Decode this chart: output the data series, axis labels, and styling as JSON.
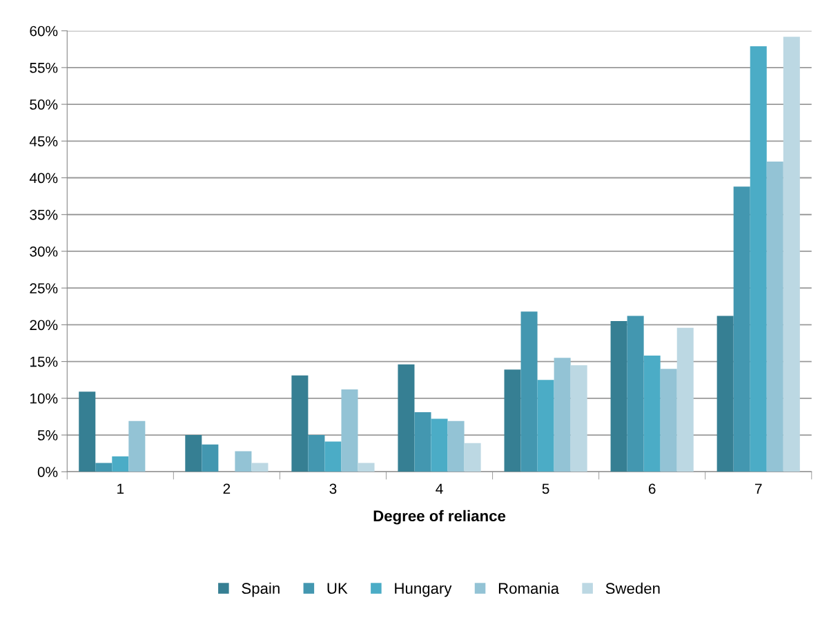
{
  "chart_data": {
    "type": "bar",
    "xlabel": "Degree of reliance",
    "categories": [
      "1",
      "2",
      "3",
      "4",
      "5",
      "6",
      "7"
    ],
    "series": [
      {
        "name": "Spain",
        "color": "#367f93",
        "values": [
          10.9,
          5.0,
          13.1,
          14.6,
          13.9,
          20.5,
          21.2
        ]
      },
      {
        "name": "UK",
        "color": "#4397b0",
        "values": [
          1.2,
          3.7,
          5.0,
          8.1,
          21.8,
          21.2,
          38.8
        ]
      },
      {
        "name": "Hungary",
        "color": "#4bacc6",
        "values": [
          2.1,
          0,
          4.1,
          7.2,
          12.5,
          15.8,
          57.9
        ]
      },
      {
        "name": "Romania",
        "color": "#93c3d5",
        "values": [
          6.9,
          2.8,
          11.2,
          6.9,
          15.5,
          14.0,
          42.2
        ]
      },
      {
        "name": "Sweden",
        "color": "#bcd8e3",
        "values": [
          0,
          1.2,
          1.2,
          3.9,
          14.5,
          19.6,
          59.2
        ]
      }
    ],
    "ylim": [
      0,
      60
    ],
    "yticks": [
      {
        "value": 0,
        "label": "0%"
      },
      {
        "value": 5,
        "label": "5%"
      },
      {
        "value": 10,
        "label": "10%"
      },
      {
        "value": 15,
        "label": "15%"
      },
      {
        "value": 20,
        "label": "20%"
      },
      {
        "value": 25,
        "label": "25%"
      },
      {
        "value": 30,
        "label": "30%"
      },
      {
        "value": 35,
        "label": "35%"
      },
      {
        "value": 40,
        "label": "40%"
      },
      {
        "value": 45,
        "label": "45%"
      },
      {
        "value": 50,
        "label": "50%"
      },
      {
        "value": 55,
        "label": "55%"
      },
      {
        "value": 60,
        "label": "60%"
      }
    ],
    "grid": "y",
    "legend": "bottom"
  }
}
